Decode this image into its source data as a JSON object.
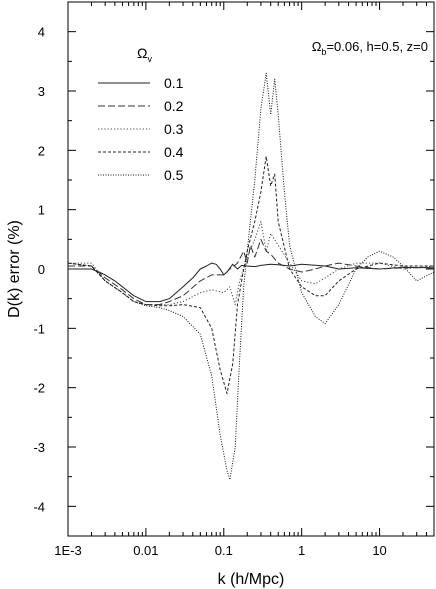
{
  "chart_data": {
    "type": "line",
    "title": "",
    "xlabel": "k (h/Mpc)",
    "ylabel": "D(k) error (%)",
    "x_scale": "log",
    "xlim": [
      0.001,
      50
    ],
    "ylim": [
      -4.5,
      4.5
    ],
    "x_ticks": [
      {
        "value": 0.001,
        "label": "1E-3"
      },
      {
        "value": 0.01,
        "label": "0.01"
      },
      {
        "value": 0.1,
        "label": "0.1"
      },
      {
        "value": 1,
        "label": "1"
      },
      {
        "value": 10,
        "label": "10"
      }
    ],
    "y_ticks": [
      {
        "value": -4,
        "label": "-4"
      },
      {
        "value": -3,
        "label": "-3"
      },
      {
        "value": -2,
        "label": "-2"
      },
      {
        "value": -1,
        "label": "-1"
      },
      {
        "value": 0,
        "label": "0"
      },
      {
        "value": 1,
        "label": "1"
      },
      {
        "value": 2,
        "label": "2"
      },
      {
        "value": 3,
        "label": "3"
      },
      {
        "value": 4,
        "label": "4"
      }
    ],
    "grid": false,
    "legend": {
      "title_base": "Ω",
      "title_sub": "v",
      "position": "top-left"
    },
    "annotation": {
      "prefix": "Ω",
      "sub": "b",
      "suffix": "=0.06, h=0.5, z=0"
    },
    "series": [
      {
        "name": "0.1",
        "style": "solid",
        "points": [
          [
            0.001,
            0.0
          ],
          [
            0.002,
            0.0
          ],
          [
            0.0025,
            -0.05
          ],
          [
            0.003,
            -0.1
          ],
          [
            0.004,
            -0.2
          ],
          [
            0.005,
            -0.3
          ],
          [
            0.007,
            -0.45
          ],
          [
            0.01,
            -0.55
          ],
          [
            0.015,
            -0.55
          ],
          [
            0.02,
            -0.5
          ],
          [
            0.03,
            -0.3
          ],
          [
            0.04,
            -0.15
          ],
          [
            0.05,
            0.0
          ],
          [
            0.06,
            0.05
          ],
          [
            0.07,
            0.1
          ],
          [
            0.08,
            0.08
          ],
          [
            0.09,
            0.0
          ],
          [
            0.1,
            -0.1
          ],
          [
            0.11,
            -0.05
          ],
          [
            0.13,
            0.08
          ],
          [
            0.15,
            0.0
          ],
          [
            0.17,
            0.06
          ],
          [
            0.2,
            0.05
          ],
          [
            0.25,
            0.04
          ],
          [
            0.3,
            0.06
          ],
          [
            0.4,
            0.08
          ],
          [
            0.5,
            0.07
          ],
          [
            0.7,
            0.05
          ],
          [
            1,
            0.08
          ],
          [
            2,
            0.05
          ],
          [
            3,
            0.0
          ],
          [
            5,
            0.02
          ],
          [
            10,
            0.0
          ],
          [
            20,
            0.03
          ],
          [
            50,
            0.02
          ]
        ]
      },
      {
        "name": "0.2",
        "style": "dashed",
        "points": [
          [
            0.001,
            0.05
          ],
          [
            0.002,
            0.05
          ],
          [
            0.003,
            -0.15
          ],
          [
            0.005,
            -0.35
          ],
          [
            0.007,
            -0.5
          ],
          [
            0.01,
            -0.6
          ],
          [
            0.015,
            -0.6
          ],
          [
            0.02,
            -0.55
          ],
          [
            0.03,
            -0.45
          ],
          [
            0.05,
            -0.2
          ],
          [
            0.07,
            -0.1
          ],
          [
            0.1,
            -0.1
          ],
          [
            0.12,
            0.0
          ],
          [
            0.15,
            0.1
          ],
          [
            0.18,
            0.3
          ],
          [
            0.2,
            0.1
          ],
          [
            0.22,
            0.4
          ],
          [
            0.25,
            0.2
          ],
          [
            0.3,
            0.5
          ],
          [
            0.35,
            0.3
          ],
          [
            0.4,
            0.25
          ],
          [
            0.5,
            0.1
          ],
          [
            0.7,
            0.0
          ],
          [
            1,
            -0.05
          ],
          [
            1.5,
            0.0
          ],
          [
            2,
            0.05
          ],
          [
            3,
            0.1
          ],
          [
            5,
            0.05
          ],
          [
            10,
            0.0
          ],
          [
            20,
            0.02
          ],
          [
            50,
            0.02
          ]
        ]
      },
      {
        "name": "0.3",
        "style": "dotted",
        "points": [
          [
            0.001,
            0.1
          ],
          [
            0.002,
            0.1
          ],
          [
            0.003,
            -0.2
          ],
          [
            0.005,
            -0.4
          ],
          [
            0.007,
            -0.55
          ],
          [
            0.01,
            -0.6
          ],
          [
            0.015,
            -0.6
          ],
          [
            0.02,
            -0.6
          ],
          [
            0.03,
            -0.55
          ],
          [
            0.05,
            -0.4
          ],
          [
            0.07,
            -0.35
          ],
          [
            0.1,
            -0.4
          ],
          [
            0.12,
            -0.3
          ],
          [
            0.14,
            -0.6
          ],
          [
            0.16,
            -0.2
          ],
          [
            0.2,
            0.2
          ],
          [
            0.25,
            0.5
          ],
          [
            0.3,
            0.8
          ],
          [
            0.35,
            0.3
          ],
          [
            0.4,
            0.6
          ],
          [
            0.5,
            0.4
          ],
          [
            0.7,
            0.1
          ],
          [
            1,
            -0.2
          ],
          [
            1.5,
            -0.25
          ],
          [
            2,
            -0.15
          ],
          [
            3,
            0.0
          ],
          [
            5,
            0.1
          ],
          [
            10,
            0.1
          ],
          [
            20,
            0.0
          ],
          [
            50,
            0.05
          ]
        ]
      },
      {
        "name": "0.4",
        "style": "short-dash",
        "points": [
          [
            0.001,
            0.1
          ],
          [
            0.002,
            0.05
          ],
          [
            0.003,
            -0.2
          ],
          [
            0.005,
            -0.4
          ],
          [
            0.007,
            -0.55
          ],
          [
            0.01,
            -0.6
          ],
          [
            0.015,
            -0.62
          ],
          [
            0.02,
            -0.62
          ],
          [
            0.03,
            -0.6
          ],
          [
            0.05,
            -0.65
          ],
          [
            0.07,
            -1.0
          ],
          [
            0.09,
            -1.7
          ],
          [
            0.11,
            -2.1
          ],
          [
            0.13,
            -1.6
          ],
          [
            0.15,
            -0.6
          ],
          [
            0.18,
            0.0
          ],
          [
            0.2,
            0.3
          ],
          [
            0.25,
            0.8
          ],
          [
            0.3,
            1.3
          ],
          [
            0.35,
            1.9
          ],
          [
            0.4,
            1.4
          ],
          [
            0.45,
            1.6
          ],
          [
            0.5,
            0.8
          ],
          [
            0.7,
            0.0
          ],
          [
            1,
            -0.3
          ],
          [
            1.5,
            -0.45
          ],
          [
            2,
            -0.45
          ],
          [
            3,
            -0.2
          ],
          [
            5,
            0.0
          ],
          [
            10,
            0.1
          ],
          [
            20,
            0.05
          ],
          [
            50,
            0.05
          ]
        ]
      },
      {
        "name": "0.5",
        "style": "sparse-dot",
        "points": [
          [
            0.001,
            0.1
          ],
          [
            0.002,
            0.05
          ],
          [
            0.003,
            -0.2
          ],
          [
            0.005,
            -0.4
          ],
          [
            0.007,
            -0.55
          ],
          [
            0.01,
            -0.62
          ],
          [
            0.015,
            -0.65
          ],
          [
            0.02,
            -0.7
          ],
          [
            0.03,
            -0.8
          ],
          [
            0.05,
            -1.1
          ],
          [
            0.07,
            -1.8
          ],
          [
            0.09,
            -2.8
          ],
          [
            0.11,
            -3.4
          ],
          [
            0.12,
            -3.55
          ],
          [
            0.14,
            -3.0
          ],
          [
            0.16,
            -1.5
          ],
          [
            0.18,
            -0.3
          ],
          [
            0.2,
            0.3
          ],
          [
            0.25,
            1.5
          ],
          [
            0.3,
            2.7
          ],
          [
            0.35,
            3.3
          ],
          [
            0.4,
            2.6
          ],
          [
            0.45,
            3.2
          ],
          [
            0.5,
            2.6
          ],
          [
            0.6,
            1.3
          ],
          [
            0.7,
            0.4
          ],
          [
            1,
            -0.4
          ],
          [
            1.5,
            -0.8
          ],
          [
            2,
            -0.92
          ],
          [
            3,
            -0.6
          ],
          [
            5,
            0.0
          ],
          [
            7,
            0.2
          ],
          [
            10,
            0.3
          ],
          [
            15,
            0.2
          ],
          [
            20,
            0.05
          ],
          [
            30,
            -0.2
          ],
          [
            50,
            -0.05
          ]
        ]
      }
    ]
  }
}
